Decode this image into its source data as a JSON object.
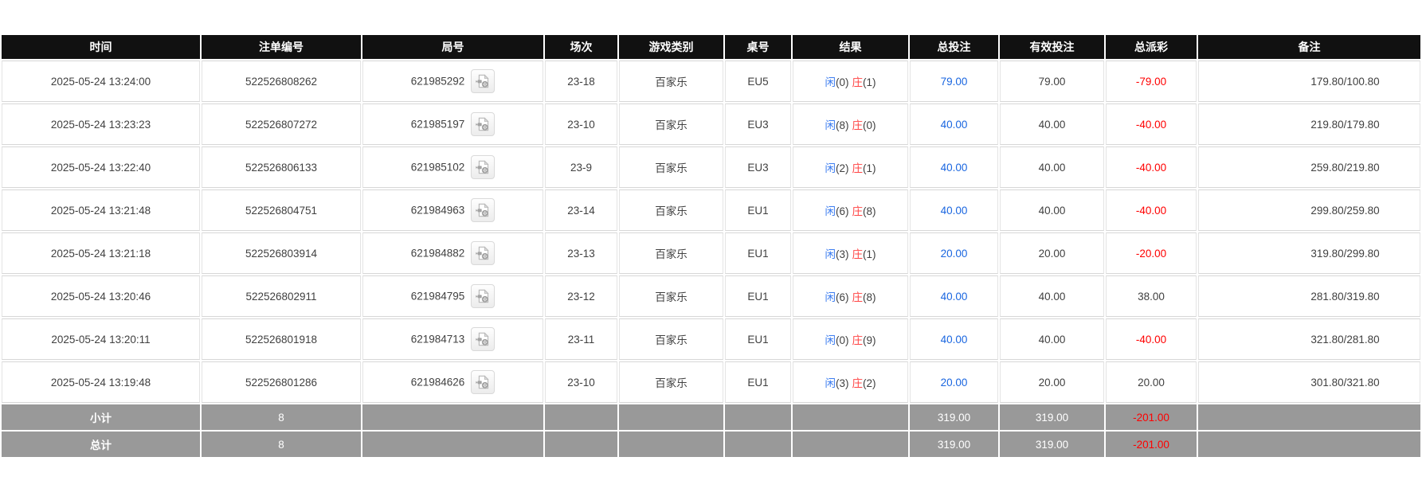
{
  "table": {
    "columns": [
      {
        "key": "time",
        "label": "时间"
      },
      {
        "key": "bet_id",
        "label": "注单编号"
      },
      {
        "key": "round_id",
        "label": "局号"
      },
      {
        "key": "session",
        "label": "场次"
      },
      {
        "key": "game_type",
        "label": "游戏类别"
      },
      {
        "key": "table_no",
        "label": "桌号"
      },
      {
        "key": "result",
        "label": "结果"
      },
      {
        "key": "total_bet",
        "label": "总投注"
      },
      {
        "key": "valid_bet",
        "label": "有效投注"
      },
      {
        "key": "total_payout",
        "label": "总派彩"
      },
      {
        "key": "remark",
        "label": "备注"
      }
    ],
    "rows": [
      {
        "time": "2025-05-24 13:24:00",
        "bet_id": "522526808262",
        "round_id": "621985292",
        "session": "23-18",
        "game_type": "百家乐",
        "table_no": "EU5",
        "player_label": "闲",
        "player_value": "(0)",
        "banker_label": "庄",
        "banker_value": "(1)",
        "total_bet": "79.00",
        "valid_bet": "79.00",
        "total_payout": "-79.00",
        "payout_negative": true,
        "remark": "179.80/100.80"
      },
      {
        "time": "2025-05-24 13:23:23",
        "bet_id": "522526807272",
        "round_id": "621985197",
        "session": "23-10",
        "game_type": "百家乐",
        "table_no": "EU3",
        "player_label": "闲",
        "player_value": "(8)",
        "banker_label": "庄",
        "banker_value": "(0)",
        "total_bet": "40.00",
        "valid_bet": "40.00",
        "total_payout": "-40.00",
        "payout_negative": true,
        "remark": "219.80/179.80"
      },
      {
        "time": "2025-05-24 13:22:40",
        "bet_id": "522526806133",
        "round_id": "621985102",
        "session": "23-9",
        "game_type": "百家乐",
        "table_no": "EU3",
        "player_label": "闲",
        "player_value": "(2)",
        "banker_label": "庄",
        "banker_value": "(1)",
        "total_bet": "40.00",
        "valid_bet": "40.00",
        "total_payout": "-40.00",
        "payout_negative": true,
        "remark": "259.80/219.80"
      },
      {
        "time": "2025-05-24 13:21:48",
        "bet_id": "522526804751",
        "round_id": "621984963",
        "session": "23-14",
        "game_type": "百家乐",
        "table_no": "EU1",
        "player_label": "闲",
        "player_value": "(6)",
        "banker_label": "庄",
        "banker_value": "(8)",
        "total_bet": "40.00",
        "valid_bet": "40.00",
        "total_payout": "-40.00",
        "payout_negative": true,
        "remark": "299.80/259.80"
      },
      {
        "time": "2025-05-24 13:21:18",
        "bet_id": "522526803914",
        "round_id": "621984882",
        "session": "23-13",
        "game_type": "百家乐",
        "table_no": "EU1",
        "player_label": "闲",
        "player_value": "(3)",
        "banker_label": "庄",
        "banker_value": "(1)",
        "total_bet": "20.00",
        "valid_bet": "20.00",
        "total_payout": "-20.00",
        "payout_negative": true,
        "remark": "319.80/299.80"
      },
      {
        "time": "2025-05-24 13:20:46",
        "bet_id": "522526802911",
        "round_id": "621984795",
        "session": "23-12",
        "game_type": "百家乐",
        "table_no": "EU1",
        "player_label": "闲",
        "player_value": "(6)",
        "banker_label": "庄",
        "banker_value": "(8)",
        "total_bet": "40.00",
        "valid_bet": "40.00",
        "total_payout": "38.00",
        "payout_negative": false,
        "remark": "281.80/319.80"
      },
      {
        "time": "2025-05-24 13:20:11",
        "bet_id": "522526801918",
        "round_id": "621984713",
        "session": "23-11",
        "game_type": "百家乐",
        "table_no": "EU1",
        "player_label": "闲",
        "player_value": "(0)",
        "banker_label": "庄",
        "banker_value": "(9)",
        "total_bet": "40.00",
        "valid_bet": "40.00",
        "total_payout": "-40.00",
        "payout_negative": true,
        "remark": "321.80/281.80"
      },
      {
        "time": "2025-05-24 13:19:48",
        "bet_id": "522526801286",
        "round_id": "621984626",
        "session": "23-10",
        "game_type": "百家乐",
        "table_no": "EU1",
        "player_label": "闲",
        "player_value": "(3)",
        "banker_label": "庄",
        "banker_value": "(2)",
        "total_bet": "20.00",
        "valid_bet": "20.00",
        "total_payout": "20.00",
        "payout_negative": false,
        "remark": "301.80/321.80"
      }
    ],
    "summary_rows": [
      {
        "label": "小计",
        "count": "8",
        "total_bet": "319.00",
        "valid_bet": "319.00",
        "total_payout": "-201.00"
      },
      {
        "label": "总计",
        "count": "8",
        "total_bet": "319.00",
        "valid_bet": "319.00",
        "total_payout": "-201.00"
      }
    ]
  },
  "icons": {
    "video_replay": "video-file-icon"
  },
  "colors": {
    "header_bg": "#111111",
    "summary_bg": "#999999",
    "bet_blue": "#1a66e0",
    "player_blue": "#3d7df0",
    "banker_red": "#ff4444",
    "negative_red": "#ff0000",
    "text": "#404040"
  }
}
